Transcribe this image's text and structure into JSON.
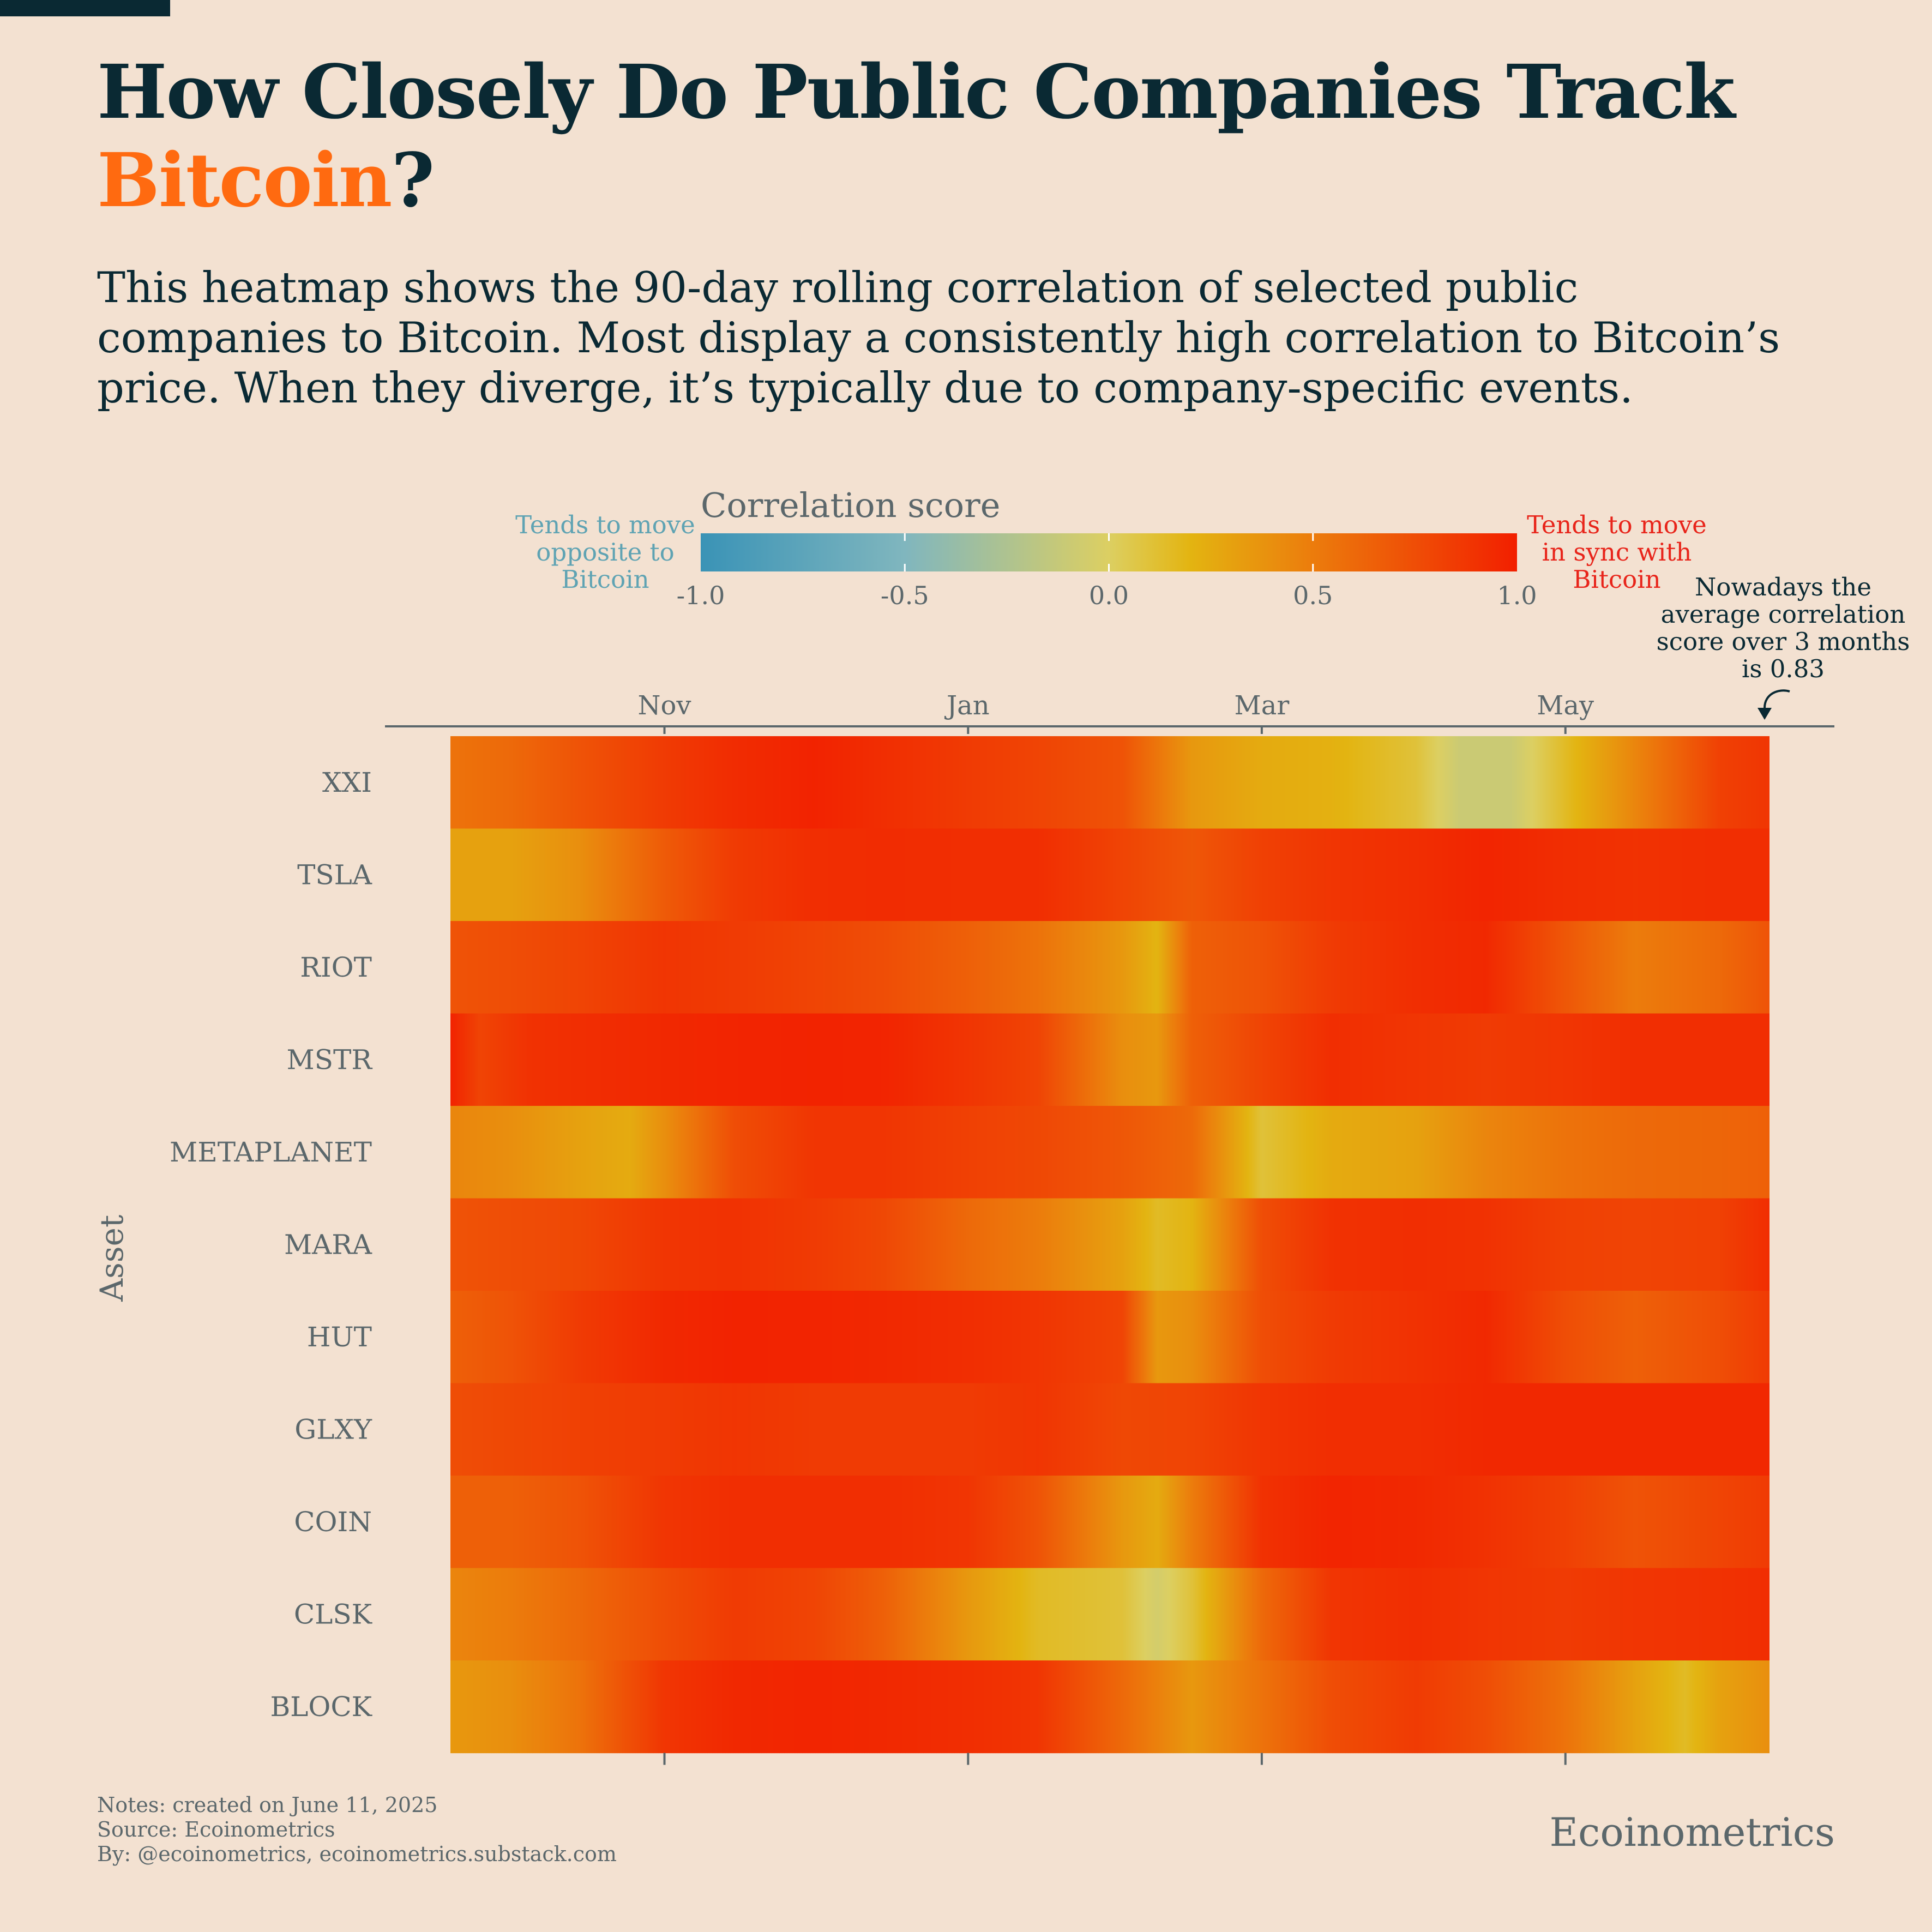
{
  "title": {
    "line1": "How Closely Do Public Companies Track",
    "highlight": "Bitcoin",
    "suffix": "?"
  },
  "subtitle": "This heatmap shows the 90-day rolling correlation of selected public companies to Bitcoin. Most display a consistently high correlation to Bitcoin’s price. When they diverge, it’s typically due to company-specific events.",
  "legend": {
    "title": "Correlation score",
    "left_label": [
      "Tends to move",
      "opposite to",
      "Bitcoin"
    ],
    "right_label": [
      "Tends to move",
      "in sync with",
      "Bitcoin"
    ],
    "ticks": [
      "-1.0",
      "-0.5",
      "0.0",
      "0.5",
      "1.0"
    ],
    "colors": {
      "neg1": "#3a93b6",
      "neg05": "#80b6be",
      "zero": "#dccf62",
      "p02": "#e3b411",
      "p05": "#ec7c0c",
      "pos1": "#f21f00"
    }
  },
  "annotation": [
    "Nowadays the",
    "average correlation",
    "score over 3 months",
    "is 0.83"
  ],
  "notes": [
    "Notes: created on June 11, 2025",
    "Source: Ecoinometrics",
    "By: @ecoinometrics, ecoinometrics.substack.com"
  ],
  "brand": "Ecoinometrics",
  "chart_data": {
    "type": "heatmap",
    "ylabel": "Asset",
    "xlabel": "",
    "x_start": "2024-09-19",
    "x_end": "2025-06-11",
    "x_ticks": [
      {
        "label": "Nov",
        "date": "2024-11-01"
      },
      {
        "label": "Jan",
        "date": "2025-01-01"
      },
      {
        "label": "Mar",
        "date": "2025-03-01"
      },
      {
        "label": "May",
        "date": "2025-05-01"
      }
    ],
    "value_range": [
      -1,
      1
    ],
    "rows": [
      {
        "name": "XXI",
        "dates": [
          "2024-09-19",
          "2024-10-01",
          "2024-10-15",
          "2024-11-01",
          "2024-11-15",
          "2024-12-01",
          "2024-12-15",
          "2025-01-01",
          "2025-01-15",
          "2025-02-01",
          "2025-02-15",
          "2025-03-01",
          "2025-03-15",
          "2025-04-01",
          "2025-04-10",
          "2025-04-20",
          "2025-05-01",
          "2025-05-15",
          "2025-06-01",
          "2025-06-11"
        ],
        "values": [
          0.55,
          0.6,
          0.72,
          0.85,
          0.93,
          0.98,
          0.92,
          0.85,
          0.8,
          0.72,
          0.35,
          0.25,
          0.22,
          0.1,
          -0.1,
          -0.1,
          0.15,
          0.45,
          0.82,
          0.88
        ]
      },
      {
        "name": "TSLA",
        "dates": [
          "2024-09-19",
          "2024-10-01",
          "2024-10-15",
          "2024-11-01",
          "2024-11-15",
          "2024-12-01",
          "2024-12-15",
          "2025-01-01",
          "2025-01-15",
          "2025-02-01",
          "2025-02-15",
          "2025-03-01",
          "2025-03-15",
          "2025-04-01",
          "2025-04-15",
          "2025-05-01",
          "2025-05-15",
          "2025-06-01",
          "2025-06-11"
        ],
        "values": [
          0.3,
          0.3,
          0.4,
          0.68,
          0.85,
          0.92,
          0.93,
          0.92,
          0.92,
          0.8,
          0.7,
          0.82,
          0.88,
          0.92,
          0.97,
          0.92,
          0.9,
          0.92,
          0.92
        ]
      },
      {
        "name": "RIOT",
        "dates": [
          "2024-09-19",
          "2024-10-01",
          "2024-10-15",
          "2024-11-01",
          "2024-11-15",
          "2024-12-01",
          "2024-12-15",
          "2025-01-01",
          "2025-01-15",
          "2025-02-01",
          "2025-02-08",
          "2025-02-15",
          "2025-03-01",
          "2025-03-15",
          "2025-04-01",
          "2025-04-15",
          "2025-05-01",
          "2025-05-15",
          "2025-06-01",
          "2025-06-11"
        ],
        "values": [
          0.72,
          0.75,
          0.8,
          0.88,
          0.85,
          0.8,
          0.75,
          0.65,
          0.55,
          0.35,
          0.2,
          0.65,
          0.72,
          0.85,
          0.92,
          0.95,
          0.7,
          0.5,
          0.6,
          0.72
        ]
      },
      {
        "name": "MSTR",
        "dates": [
          "2024-09-19",
          "2024-09-25",
          "2024-10-05",
          "2024-10-15",
          "2024-11-01",
          "2024-11-15",
          "2024-12-01",
          "2024-12-15",
          "2025-01-01",
          "2025-01-15",
          "2025-02-01",
          "2025-02-08",
          "2025-02-15",
          "2025-03-01",
          "2025-03-15",
          "2025-04-01",
          "2025-04-15",
          "2025-05-01",
          "2025-05-15",
          "2025-06-01",
          "2025-06-11"
        ],
        "values": [
          0.98,
          0.8,
          0.9,
          0.92,
          0.95,
          0.97,
          0.98,
          0.97,
          0.88,
          0.8,
          0.4,
          0.35,
          0.65,
          0.8,
          0.92,
          0.88,
          0.85,
          0.88,
          0.92,
          0.92,
          0.92
        ]
      },
      {
        "name": "METAPLANET",
        "dates": [
          "2024-09-19",
          "2024-10-01",
          "2024-10-15",
          "2024-10-25",
          "2024-11-01",
          "2024-11-15",
          "2024-12-01",
          "2024-12-15",
          "2025-01-01",
          "2025-01-15",
          "2025-02-01",
          "2025-02-15",
          "2025-03-01",
          "2025-03-15",
          "2025-04-01",
          "2025-04-15",
          "2025-05-01",
          "2025-05-15",
          "2025-06-01",
          "2025-06-11"
        ],
        "values": [
          0.45,
          0.4,
          0.3,
          0.25,
          0.4,
          0.75,
          0.88,
          0.88,
          0.82,
          0.78,
          0.7,
          0.6,
          0.1,
          0.25,
          0.3,
          0.45,
          0.55,
          0.6,
          0.62,
          0.65
        ]
      },
      {
        "name": "MARA",
        "dates": [
          "2024-09-19",
          "2024-10-01",
          "2024-10-15",
          "2024-11-01",
          "2024-11-15",
          "2024-12-01",
          "2024-12-15",
          "2025-01-01",
          "2025-01-15",
          "2025-02-01",
          "2025-02-08",
          "2025-02-15",
          "2025-03-01",
          "2025-03-15",
          "2025-04-01",
          "2025-04-15",
          "2025-05-01",
          "2025-05-15",
          "2025-06-01",
          "2025-06-11"
        ],
        "values": [
          0.72,
          0.75,
          0.78,
          0.88,
          0.9,
          0.85,
          0.78,
          0.6,
          0.5,
          0.3,
          0.15,
          0.2,
          0.75,
          0.9,
          0.92,
          0.9,
          0.82,
          0.8,
          0.82,
          0.92
        ]
      },
      {
        "name": "HUT",
        "dates": [
          "2024-09-19",
          "2024-10-01",
          "2024-10-15",
          "2024-11-01",
          "2024-11-15",
          "2024-12-01",
          "2024-12-15",
          "2025-01-01",
          "2025-01-15",
          "2025-02-01",
          "2025-02-08",
          "2025-02-15",
          "2025-03-01",
          "2025-03-15",
          "2025-04-01",
          "2025-04-15",
          "2025-05-01",
          "2025-05-15",
          "2025-06-01",
          "2025-06-11"
        ],
        "values": [
          0.65,
          0.72,
          0.85,
          0.95,
          0.98,
          0.97,
          0.95,
          0.92,
          0.88,
          0.8,
          0.35,
          0.4,
          0.75,
          0.85,
          0.9,
          0.95,
          0.75,
          0.65,
          0.75,
          0.85
        ]
      },
      {
        "name": "GLXY",
        "dates": [
          "2024-09-19",
          "2024-10-01",
          "2024-10-15",
          "2024-11-01",
          "2024-11-15",
          "2024-12-01",
          "2024-12-15",
          "2025-01-01",
          "2025-01-15",
          "2025-02-01",
          "2025-02-15",
          "2025-03-01",
          "2025-03-15",
          "2025-04-01",
          "2025-04-15",
          "2025-05-01",
          "2025-05-15",
          "2025-06-01",
          "2025-06-11"
        ],
        "values": [
          0.75,
          0.78,
          0.82,
          0.85,
          0.88,
          0.85,
          0.85,
          0.85,
          0.88,
          0.78,
          0.8,
          0.88,
          0.92,
          0.92,
          0.95,
          0.95,
          0.95,
          0.95,
          0.95
        ]
      },
      {
        "name": "COIN",
        "dates": [
          "2024-09-19",
          "2024-10-01",
          "2024-10-15",
          "2024-11-01",
          "2024-11-15",
          "2024-12-01",
          "2024-12-15",
          "2025-01-01",
          "2025-01-15",
          "2025-02-01",
          "2025-02-08",
          "2025-02-15",
          "2025-03-01",
          "2025-03-15",
          "2025-04-01",
          "2025-04-15",
          "2025-05-01",
          "2025-05-15",
          "2025-06-01",
          "2025-06-11"
        ],
        "values": [
          0.65,
          0.65,
          0.72,
          0.88,
          0.92,
          0.92,
          0.92,
          0.88,
          0.72,
          0.35,
          0.25,
          0.5,
          0.9,
          0.97,
          0.95,
          0.9,
          0.82,
          0.72,
          0.8,
          0.85
        ]
      },
      {
        "name": "CLSK",
        "dates": [
          "2024-09-19",
          "2024-10-01",
          "2024-10-15",
          "2024-11-01",
          "2024-11-15",
          "2024-12-01",
          "2024-12-15",
          "2025-01-01",
          "2025-01-15",
          "2025-02-01",
          "2025-02-08",
          "2025-02-15",
          "2025-03-01",
          "2025-03-15",
          "2025-04-01",
          "2025-04-15",
          "2025-05-01",
          "2025-05-15",
          "2025-06-01",
          "2025-06-11"
        ],
        "values": [
          0.45,
          0.5,
          0.6,
          0.75,
          0.85,
          0.8,
          0.65,
          0.35,
          0.15,
          0.1,
          -0.05,
          0.1,
          0.6,
          0.88,
          0.92,
          0.88,
          0.85,
          0.88,
          0.9,
          0.92
        ]
      },
      {
        "name": "BLOCK",
        "dates": [
          "2024-09-19",
          "2024-10-01",
          "2024-10-15",
          "2024-11-01",
          "2024-11-15",
          "2024-12-01",
          "2024-12-15",
          "2025-01-01",
          "2025-01-15",
          "2025-02-01",
          "2025-02-15",
          "2025-03-01",
          "2025-03-15",
          "2025-04-01",
          "2025-04-15",
          "2025-05-01",
          "2025-05-15",
          "2025-05-25",
          "2025-06-01",
          "2025-06-11"
        ],
        "values": [
          0.35,
          0.4,
          0.55,
          0.88,
          0.95,
          0.97,
          0.95,
          0.92,
          0.88,
          0.6,
          0.35,
          0.55,
          0.75,
          0.85,
          0.75,
          0.55,
          0.3,
          0.15,
          0.3,
          0.4
        ]
      }
    ]
  }
}
